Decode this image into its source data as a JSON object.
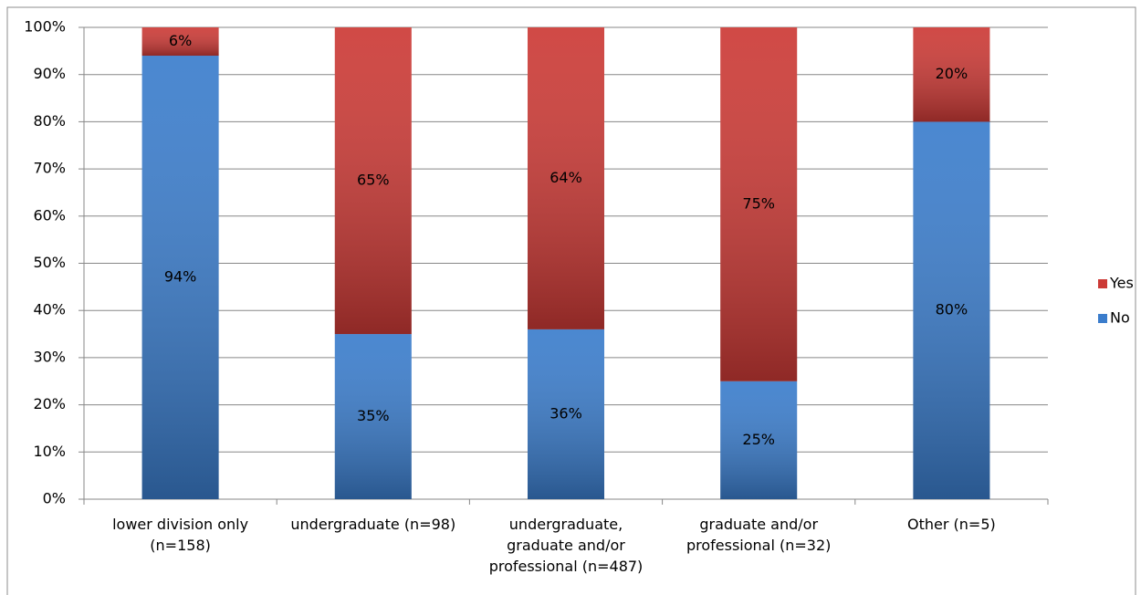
{
  "chart_data": {
    "type": "stacked_bar",
    "categories": [
      "lower division only (n=158)",
      "undergraduate (n=98)",
      "undergraduate, graduate and/or professional (n=487)",
      "graduate and/or professional (n=32)",
      "Other (n=5)"
    ],
    "series": [
      {
        "name": "No",
        "color": "#3b7dcc",
        "values": [
          94,
          35,
          36,
          25,
          80
        ],
        "value_labels": [
          "94%",
          "35%",
          "36%",
          "25%",
          "80%"
        ]
      },
      {
        "name": "Yes",
        "color": "#cc3a36",
        "values": [
          6,
          65,
          64,
          75,
          20
        ],
        "value_labels": [
          "6%",
          "65%",
          "64%",
          "75%",
          "20%"
        ]
      }
    ],
    "ylim": [
      0,
      100
    ],
    "yticks": [
      {
        "value": 0,
        "label": "0%"
      },
      {
        "value": 10,
        "label": "10%"
      },
      {
        "value": 20,
        "label": "20%"
      },
      {
        "value": 30,
        "label": "30%"
      },
      {
        "value": 40,
        "label": "40%"
      },
      {
        "value": 50,
        "label": "50%"
      },
      {
        "value": 60,
        "label": "60%"
      },
      {
        "value": 70,
        "label": "70%"
      },
      {
        "value": 80,
        "label": "80%"
      },
      {
        "value": 90,
        "label": "90%"
      },
      {
        "value": 100,
        "label": "100%"
      }
    ],
    "grid": true,
    "legend": "right"
  }
}
